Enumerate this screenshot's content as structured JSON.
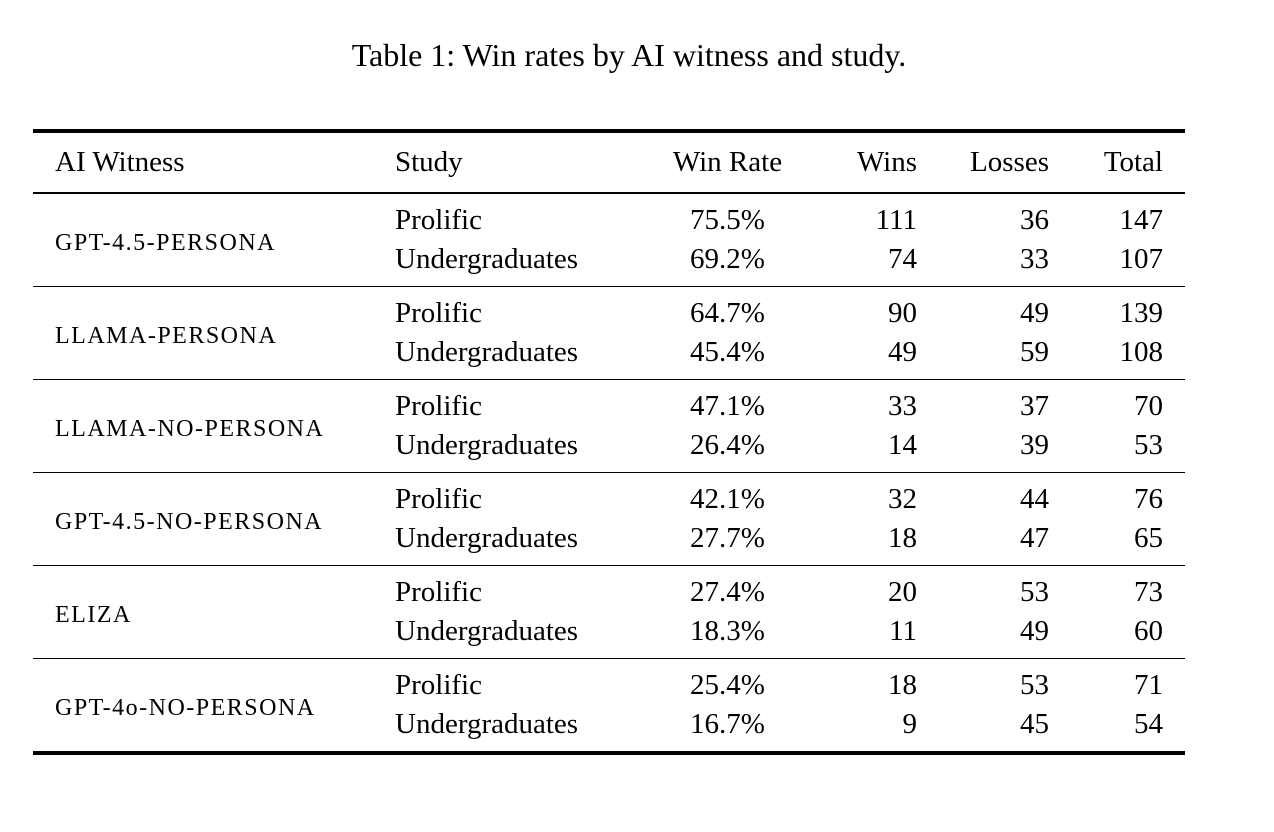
{
  "title": "Table 1: Win rates by AI witness and study.",
  "colors": {
    "text": "#000000",
    "background": "#ffffff",
    "rule": "#000000"
  },
  "table": {
    "columns": [
      "AI Witness",
      "Study",
      "Win Rate",
      "Wins",
      "Losses",
      "Total"
    ],
    "groups": [
      {
        "witness": "GPT-4.5-PERSONA",
        "rows": [
          {
            "study": "Prolific",
            "win_rate": "75.5%",
            "wins": "111",
            "losses": "36",
            "total": "147"
          },
          {
            "study": "Undergraduates",
            "win_rate": "69.2%",
            "wins": "74",
            "losses": "33",
            "total": "107"
          }
        ]
      },
      {
        "witness": "LLAMA-PERSONA",
        "rows": [
          {
            "study": "Prolific",
            "win_rate": "64.7%",
            "wins": "90",
            "losses": "49",
            "total": "139"
          },
          {
            "study": "Undergraduates",
            "win_rate": "45.4%",
            "wins": "49",
            "losses": "59",
            "total": "108"
          }
        ]
      },
      {
        "witness": "LLAMA-NO-PERSONA",
        "rows": [
          {
            "study": "Prolific",
            "win_rate": "47.1%",
            "wins": "33",
            "losses": "37",
            "total": "70"
          },
          {
            "study": "Undergraduates",
            "win_rate": "26.4%",
            "wins": "14",
            "losses": "39",
            "total": "53"
          }
        ]
      },
      {
        "witness": "GPT-4.5-NO-PERSONA",
        "rows": [
          {
            "study": "Prolific",
            "win_rate": "42.1%",
            "wins": "32",
            "losses": "44",
            "total": "76"
          },
          {
            "study": "Undergraduates",
            "win_rate": "27.7%",
            "wins": "18",
            "losses": "47",
            "total": "65"
          }
        ]
      },
      {
        "witness": "ELIZA",
        "rows": [
          {
            "study": "Prolific",
            "win_rate": "27.4%",
            "wins": "20",
            "losses": "53",
            "total": "73"
          },
          {
            "study": "Undergraduates",
            "win_rate": "18.3%",
            "wins": "11",
            "losses": "49",
            "total": "60"
          }
        ]
      },
      {
        "witness": "GPT-4o-NO-PERSONA",
        "rows": [
          {
            "study": "Prolific",
            "win_rate": "25.4%",
            "wins": "18",
            "losses": "53",
            "total": "71"
          },
          {
            "study": "Undergraduates",
            "win_rate": "16.7%",
            "wins": "9",
            "losses": "45",
            "total": "54"
          }
        ]
      }
    ]
  }
}
